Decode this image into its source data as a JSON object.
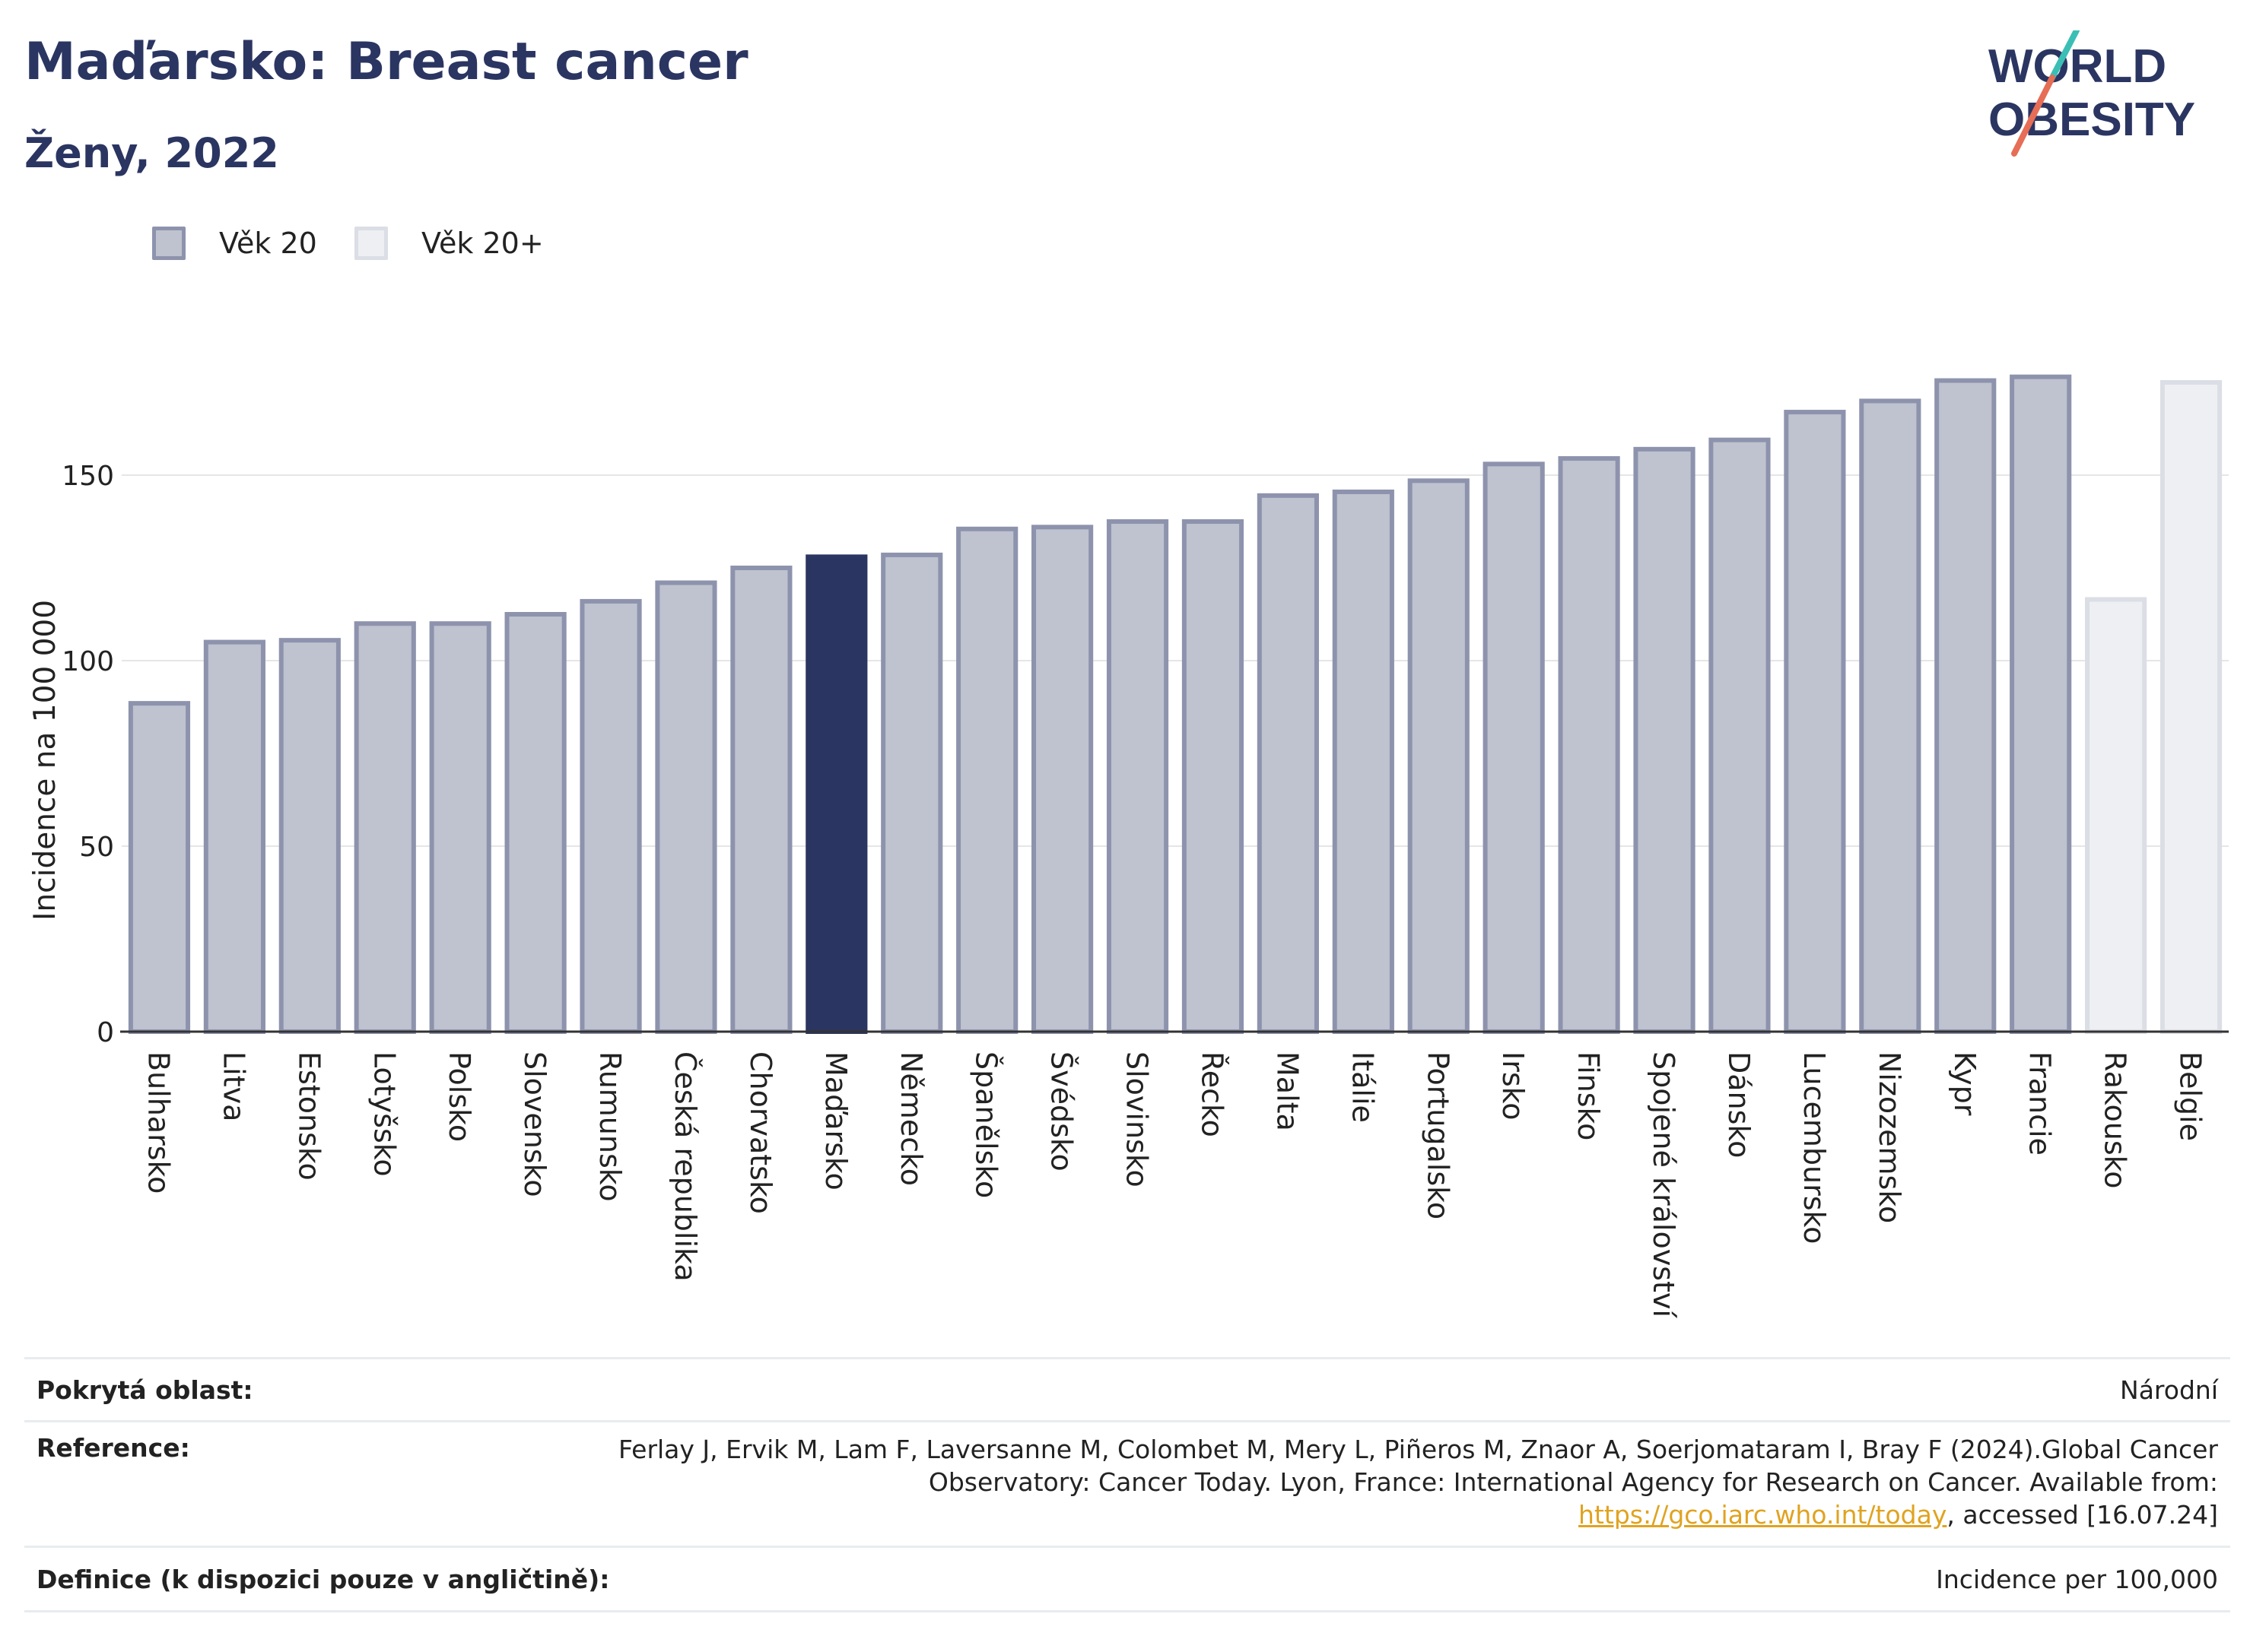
{
  "header": {
    "title": "Maďarsko: Breast cancer",
    "subtitle": "Ženy, 2022",
    "logo_line1": "WORLD",
    "logo_line2": "OBESITY"
  },
  "legend": [
    {
      "label": "Věk 20",
      "color": "#bfc2cf",
      "border": "#8e93ad"
    },
    {
      "label": "Věk 20+",
      "color": "#eeeff3",
      "border": "#dcdee6"
    }
  ],
  "colors": {
    "highlight": "#2b3561",
    "bar": "#bfc2cf",
    "bar_border": "#8e93ad",
    "bar_alt": "#eeeff3",
    "bar_alt_border": "#dcdee6",
    "grid": "#e6e6e6",
    "link": "#e0a320"
  },
  "chart_data": {
    "type": "bar",
    "ylabel": "Incidence na 100 000",
    "ylim": [
      0,
      192
    ],
    "yticks": [
      0,
      50,
      100,
      150
    ],
    "grid": true,
    "legend_placement": "top-left",
    "highlight_category": "Maďarsko",
    "categories": [
      "Bulharsko",
      "Litva",
      "Estonsko",
      "Lotyšsko",
      "Polsko",
      "Slovensko",
      "Rumunsko",
      "Česká republika",
      "Chorvatsko",
      "Maďarsko",
      "Německo",
      "Španělsko",
      "Švédsko",
      "Slovinsko",
      "Řecko",
      "Malta",
      "Itálie",
      "Portugalsko",
      "Irsko",
      "Finsko",
      "Spojené království",
      "Dánsko",
      "Lucembursko",
      "Nizozemsko",
      "Kypr",
      "Francie",
      "Rakousko",
      "Belgie"
    ],
    "values": [
      88.5,
      105,
      105.5,
      110,
      110,
      112.5,
      116,
      121,
      125,
      128,
      128.5,
      135.5,
      136,
      137.5,
      137.5,
      144.5,
      145.5,
      148.5,
      153,
      154.5,
      157,
      159.5,
      167,
      170,
      175.5,
      176.5,
      116.5,
      175
    ],
    "series_index": [
      0,
      0,
      0,
      0,
      0,
      0,
      0,
      0,
      0,
      0,
      0,
      0,
      0,
      0,
      0,
      0,
      0,
      0,
      0,
      0,
      0,
      0,
      0,
      0,
      0,
      0,
      1,
      1
    ]
  },
  "footer": {
    "rows": [
      {
        "label": "Pokrytá oblast:",
        "value": "Národní"
      },
      {
        "label": "Reference:",
        "value_pre": "Ferlay J, Ervik M, Lam F, Laversanne M, Colombet M, Mery L, Piñeros M, Znaor A, Soerjomataram I, Bray F (2024).Global Cancer Observatory: Cancer Today. Lyon, France: International Agency for Research on Cancer. Available from: ",
        "link": "https://gco.iarc.who.int/today",
        "value_post": ", accessed [16.07.24]"
      },
      {
        "label": "Definice (k dispozici pouze v angličtině):",
        "value": "Incidence per 100,000"
      }
    ]
  }
}
